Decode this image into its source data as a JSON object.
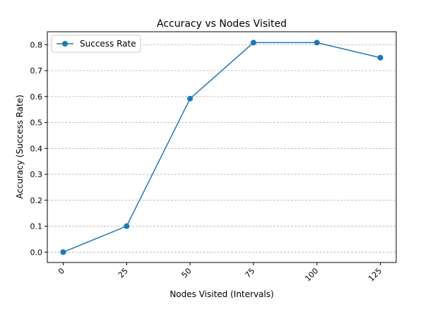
{
  "chart_data": {
    "type": "line",
    "title": "Accuracy vs Nodes Visited",
    "xlabel": "Nodes Visited (Intervals)",
    "ylabel": "Accuracy (Success Rate)",
    "x": [
      0,
      25,
      50,
      75,
      100,
      125
    ],
    "x_tick_labels": [
      "0",
      "25",
      "50",
      "75",
      "100",
      "125"
    ],
    "y_ticks": [
      0.0,
      0.1,
      0.2,
      0.3,
      0.4,
      0.5,
      0.6,
      0.7,
      0.8
    ],
    "y_tick_labels": [
      "0.0",
      "0.1",
      "0.2",
      "0.3",
      "0.4",
      "0.5",
      "0.6",
      "0.7",
      "0.8"
    ],
    "xlim": [
      -6.25,
      131.25
    ],
    "ylim": [
      -0.04,
      0.85
    ],
    "grid": "y-dashed",
    "legend_position": "top-left",
    "series": [
      {
        "name": "Success Rate",
        "color": "#1f77b4",
        "marker": "circle",
        "values": [
          0.0,
          0.1,
          0.592,
          0.808,
          0.808,
          0.75
        ]
      }
    ]
  }
}
